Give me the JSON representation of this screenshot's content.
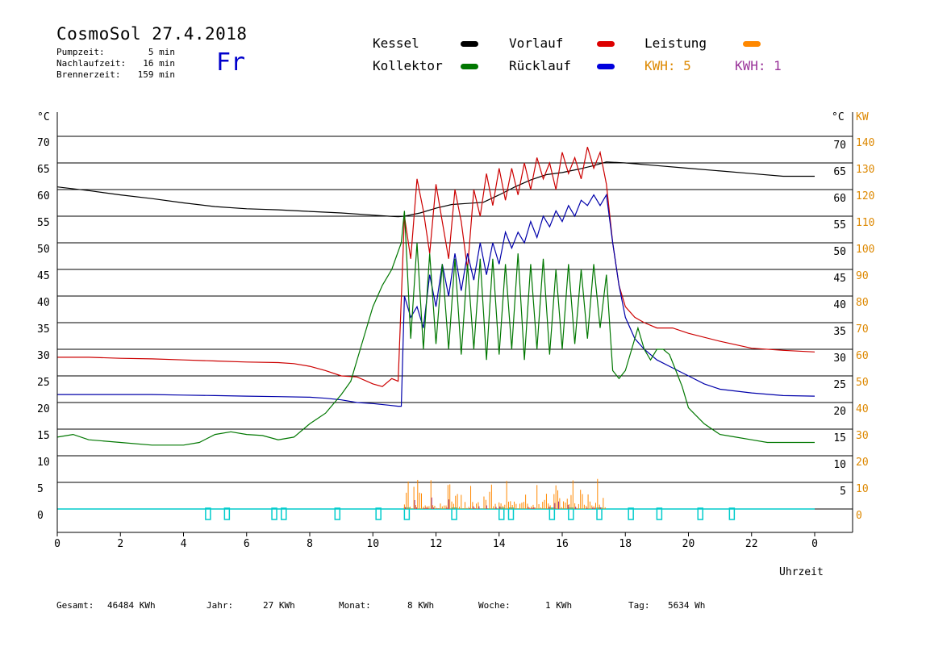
{
  "header": {
    "title": "CosmoSol 27.4.2018",
    "pumpzeit_label": "Pumpzeit:",
    "pumpzeit_value": "5 min",
    "nachlaufzeit_label": "Nachlaufzeit:",
    "nachlaufzeit_value": "16 min",
    "brennerzeit_label": "Brennerzeit:",
    "brennerzeit_value": "159 min",
    "weekday": "Fr"
  },
  "legend": {
    "kessel": "Kessel",
    "kollektor": "Kollektor",
    "vorlauf": "Vorlauf",
    "ruecklauf": "Rücklauf",
    "leistung": "Leistung",
    "kwh_orange": "KWH: 5",
    "kwh_purple": "KWH: 1"
  },
  "colors": {
    "kessel": "#000000",
    "kollektor": "#007700",
    "vorlauf": "#cc0000",
    "ruecklauf": "#0000aa",
    "leistung": "#ff8800",
    "purple": "#993399",
    "cyan": "#00cccc",
    "orange_text": "#dd8800"
  },
  "footer": {
    "gesamt_label": "Gesamt:",
    "gesamt_value": "46484 KWh",
    "jahr_label": "Jahr:",
    "jahr_value": "27 KWh",
    "monat_label": "Monat:",
    "monat_value": "8 KWh",
    "woche_label": "Woche:",
    "woche_value": "1 KWh",
    "tag_label": "Tag:",
    "tag_value": "5634 Wh"
  },
  "chart_data": {
    "type": "line",
    "xlabel": "Uhrzeit",
    "ylabel_left": "°C",
    "ylabel_right_temp": "°C",
    "ylabel_right_power": "KW",
    "xlim": [
      0,
      24
    ],
    "ylim": [
      -4.5,
      75
    ],
    "x_ticks": [
      "0",
      "2",
      "4",
      "6",
      "8",
      "10",
      "12",
      "14",
      "16",
      "18",
      "20",
      "22",
      "0"
    ],
    "y_left_ticks": [
      "0",
      "5",
      "10",
      "15",
      "20",
      "25",
      "30",
      "35",
      "40",
      "45",
      "50",
      "55",
      "60",
      "65",
      "70"
    ],
    "y_right_temp_ticks": [
      "5",
      "10",
      "15",
      "20",
      "25",
      "30",
      "35",
      "40",
      "45",
      "50",
      "55",
      "60",
      "65",
      "70"
    ],
    "y_right_power_ticks": [
      "0",
      "10",
      "20",
      "30",
      "40",
      "50",
      "60",
      "70",
      "80",
      "90",
      "100",
      "110",
      "120",
      "130",
      "140"
    ],
    "grid": true,
    "series": [
      {
        "name": "Kessel",
        "color": "#000000",
        "x": [
          0,
          1,
          2,
          3,
          4,
          5,
          6,
          7,
          8,
          9,
          10,
          10.5,
          10.8,
          11,
          11.5,
          12,
          12.5,
          13,
          13.5,
          14,
          14.5,
          15,
          15.5,
          16,
          16.5,
          17,
          17.4,
          18,
          19,
          20,
          21,
          22,
          23,
          24
        ],
        "y": [
          60.5,
          59.8,
          59,
          58.3,
          57.5,
          56.8,
          56.4,
          56.2,
          55.9,
          55.6,
          55.2,
          55.0,
          54.9,
          55.0,
          55.6,
          56.5,
          57.2,
          57.4,
          57.6,
          59.0,
          60.5,
          61.8,
          62.8,
          63.2,
          63.8,
          64.5,
          65.2,
          65.0,
          64.5,
          64.0,
          63.5,
          63.0,
          62.5,
          62.5
        ]
      },
      {
        "name": "Vorlauf",
        "color": "#cc0000",
        "x": [
          0,
          1,
          2,
          3,
          4,
          5,
          6,
          7,
          7.5,
          8,
          8.5,
          9,
          9.5,
          10,
          10.3,
          10.6,
          10.8,
          11,
          11.2,
          11.4,
          11.6,
          11.8,
          12,
          12.2,
          12.4,
          12.6,
          12.8,
          13,
          13.2,
          13.4,
          13.6,
          13.8,
          14,
          14.2,
          14.4,
          14.6,
          14.8,
          15,
          15.2,
          15.4,
          15.6,
          15.8,
          16,
          16.2,
          16.4,
          16.6,
          16.8,
          17,
          17.2,
          17.4,
          17.6,
          17.8,
          18,
          18.3,
          18.6,
          19,
          19.5,
          20,
          21,
          22,
          23,
          24
        ],
        "y": [
          28.5,
          28.5,
          28.3,
          28.2,
          28.0,
          27.8,
          27.6,
          27.5,
          27.3,
          26.8,
          26.0,
          25.0,
          24.8,
          23.5,
          23.0,
          24.5,
          24.0,
          55.0,
          47.0,
          62.0,
          56.0,
          48.0,
          61.0,
          54.0,
          47.0,
          60.0,
          54.0,
          45.0,
          60.0,
          55.0,
          63.0,
          57.0,
          64.0,
          58.0,
          64.0,
          59.0,
          65.0,
          60.0,
          66.0,
          62.0,
          65.0,
          60.0,
          67.0,
          63.0,
          66.0,
          62.0,
          68.0,
          64.0,
          67.0,
          61.0,
          50.0,
          42.0,
          38.0,
          36.0,
          35.0,
          34.0,
          34.0,
          33.0,
          31.5,
          30.2,
          29.8,
          29.5
        ]
      },
      {
        "name": "Rücklauf",
        "color": "#0000aa",
        "x": [
          0,
          1,
          2,
          3,
          4,
          5,
          6,
          7,
          8,
          8.5,
          9,
          9.5,
          10,
          10.5,
          10.8,
          10.9,
          11,
          11.2,
          11.4,
          11.6,
          11.8,
          12,
          12.2,
          12.4,
          12.6,
          12.8,
          13,
          13.2,
          13.4,
          13.6,
          13.8,
          14,
          14.2,
          14.4,
          14.6,
          14.8,
          15,
          15.2,
          15.4,
          15.6,
          15.8,
          16,
          16.2,
          16.4,
          16.6,
          16.8,
          17,
          17.2,
          17.4,
          17.6,
          17.8,
          18,
          18.3,
          18.6,
          19,
          19.5,
          20,
          20.5,
          21,
          22,
          23,
          24
        ],
        "y": [
          21.5,
          21.5,
          21.5,
          21.5,
          21.4,
          21.3,
          21.2,
          21.1,
          21.0,
          20.8,
          20.5,
          20.0,
          19.8,
          19.5,
          19.3,
          19.3,
          40.0,
          36.0,
          38.0,
          34.0,
          44.0,
          38.0,
          46.0,
          40.0,
          48.0,
          41.0,
          48.0,
          43.0,
          50.0,
          44.0,
          50.0,
          46.0,
          52.0,
          49.0,
          52.0,
          50.0,
          54.0,
          51.0,
          55.0,
          53.0,
          56.0,
          54.0,
          57.0,
          55.0,
          58.0,
          57.0,
          59.0,
          57.0,
          59.0,
          50.0,
          42.0,
          36.0,
          32.0,
          30.0,
          28.0,
          26.5,
          25.0,
          23.5,
          22.5,
          21.8,
          21.3,
          21.2
        ]
      },
      {
        "name": "Kollektor",
        "color": "#007700",
        "x": [
          0,
          0.5,
          1,
          2,
          3,
          4,
          4.5,
          5,
          5.5,
          6,
          6.5,
          7,
          7.5,
          8,
          8.5,
          9,
          9.3,
          9.6,
          10,
          10.3,
          10.6,
          10.9,
          11,
          11.2,
          11.4,
          11.6,
          11.8,
          12,
          12.2,
          12.4,
          12.6,
          12.8,
          13,
          13.2,
          13.4,
          13.6,
          13.8,
          14,
          14.2,
          14.4,
          14.6,
          14.8,
          15,
          15.2,
          15.4,
          15.6,
          15.8,
          16,
          16.2,
          16.4,
          16.6,
          16.8,
          17,
          17.2,
          17.4,
          17.6,
          17.8,
          18,
          18.2,
          18.4,
          18.6,
          18.8,
          19,
          19.2,
          19.4,
          19.6,
          19.8,
          20,
          20.5,
          21,
          21.5,
          22,
          22.5,
          23,
          23.5,
          24
        ],
        "y": [
          13.5,
          14.0,
          13.0,
          12.5,
          12.0,
          12.0,
          12.5,
          14.0,
          14.5,
          14.0,
          13.8,
          13.0,
          13.5,
          16.0,
          18.0,
          21.5,
          24.0,
          30.0,
          38.0,
          42.0,
          45.0,
          50.0,
          56.0,
          32.0,
          50.0,
          30.0,
          48.0,
          31.0,
          46.0,
          30.0,
          47.0,
          29.0,
          46.0,
          30.0,
          47.0,
          28.0,
          47.0,
          29.0,
          46.0,
          30.0,
          48.0,
          28.0,
          46.0,
          30.0,
          47.0,
          29.0,
          45.0,
          30.0,
          46.0,
          31.0,
          45.0,
          32.0,
          46.0,
          34.0,
          44.0,
          26.0,
          24.5,
          26.0,
          30.0,
          34.0,
          30.0,
          28.0,
          30.0,
          30.0,
          29.0,
          26.0,
          23.0,
          19.0,
          16.0,
          14.0,
          13.5,
          13.0,
          12.5,
          12.5,
          12.5,
          12.5
        ]
      }
    ],
    "pump_markers_x": [
      4.7,
      5.3,
      6.8,
      7.1,
      8.8,
      10.1,
      11.0,
      12.5,
      14.0,
      14.3,
      15.6,
      16.2,
      17.1,
      18.1,
      19.0,
      20.3,
      21.3
    ]
  }
}
